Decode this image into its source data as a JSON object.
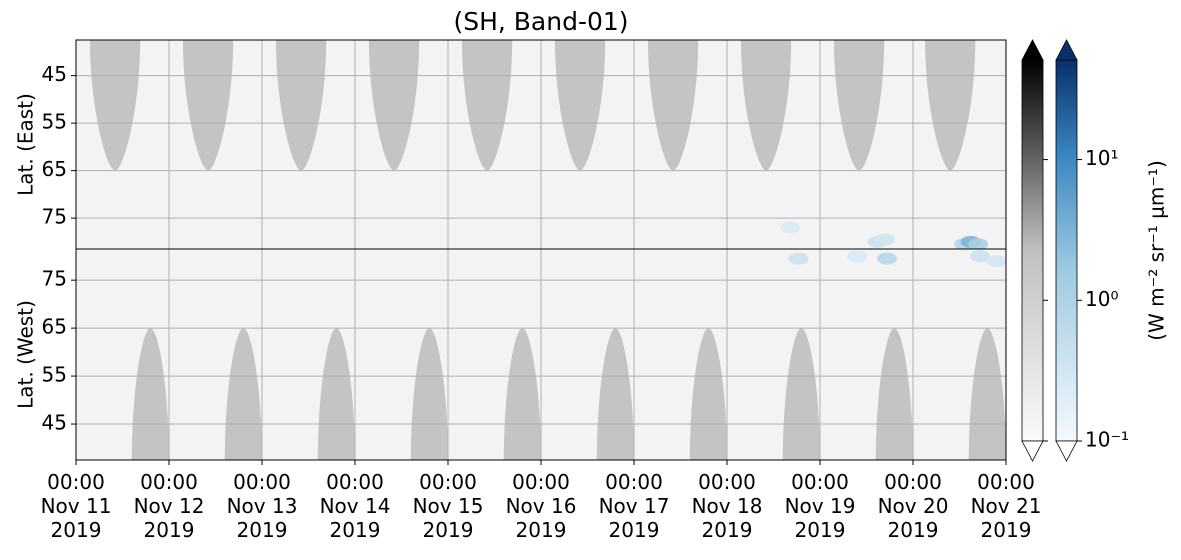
{
  "chart_data": {
    "type": "heatmap",
    "title": "(SH, Band-01)",
    "xlim": [
      0,
      10
    ],
    "xticks": [
      {
        "value": 0,
        "label": "00:00\nNov 11\n2019"
      },
      {
        "value": 1,
        "label": "00:00\nNov 12\n2019"
      },
      {
        "value": 2,
        "label": "00:00\nNov 13\n2019"
      },
      {
        "value": 3,
        "label": "00:00\nNov 14\n2019"
      },
      {
        "value": 4,
        "label": "00:00\nNov 15\n2019"
      },
      {
        "value": 5,
        "label": "00:00\nNov 16\n2019"
      },
      {
        "value": 6,
        "label": "00:00\nNov 17\n2019"
      },
      {
        "value": 7,
        "label": "00:00\nNov 18\n2019"
      },
      {
        "value": 8,
        "label": "00:00\nNov 19\n2019"
      },
      {
        "value": 9,
        "label": "00:00\nNov 20\n2019"
      },
      {
        "value": 10,
        "label": "00:00\nNov 21\n2019"
      }
    ],
    "grid": true,
    "panels": [
      {
        "ylabel": "Lat. (East)",
        "ylim": [
          37.5,
          81.5
        ],
        "yticks": [
          45,
          55,
          65,
          75
        ],
        "lobe_color": "#c4c4c4",
        "lobe_tip_lat": 65,
        "lobe_half_width": 0.27,
        "lobe_centers": [
          0.42,
          1.42,
          2.42,
          3.42,
          4.42,
          5.42,
          6.42,
          7.42,
          8.42,
          9.4
        ],
        "points": {
          "x": [
            7.68,
            8.62,
            8.7,
            9.55,
            9.62,
            9.7
          ],
          "lat": [
            77,
            80,
            79.5,
            80.5,
            80,
            80.5
          ],
          "values": [
            0.25,
            0.4,
            0.35,
            0.8,
            3,
            1.2
          ]
        }
      },
      {
        "ylabel": "Lat. (West)",
        "ylim": [
          81.5,
          37.5
        ],
        "yticks": [
          75,
          65,
          55,
          45
        ],
        "lobe_color": "#c4c4c4",
        "lobe_tip_lat": 65,
        "lobe_half_width": 0.2,
        "lobe_centers": [
          0.8,
          1.8,
          2.8,
          3.8,
          4.8,
          5.8,
          6.8,
          7.8,
          8.8,
          9.8
        ],
        "points": {
          "x": [
            7.77,
            8.72,
            8.4,
            9.72,
            9.9
          ],
          "lat": [
            79.5,
            79.5,
            80,
            80,
            79
          ],
          "values": [
            0.4,
            0.8,
            0.25,
            0.4,
            0.3
          ]
        }
      }
    ],
    "colorbar": {
      "label": "(W m⁻² sr⁻¹ μm⁻¹)",
      "log": true,
      "lim": [
        0.1,
        51
      ],
      "ticks": [
        {
          "value": 0.1,
          "label": "10⁻¹"
        },
        {
          "value": 1,
          "label": "10⁰"
        },
        {
          "value": 10,
          "label": "10¹"
        }
      ]
    }
  }
}
